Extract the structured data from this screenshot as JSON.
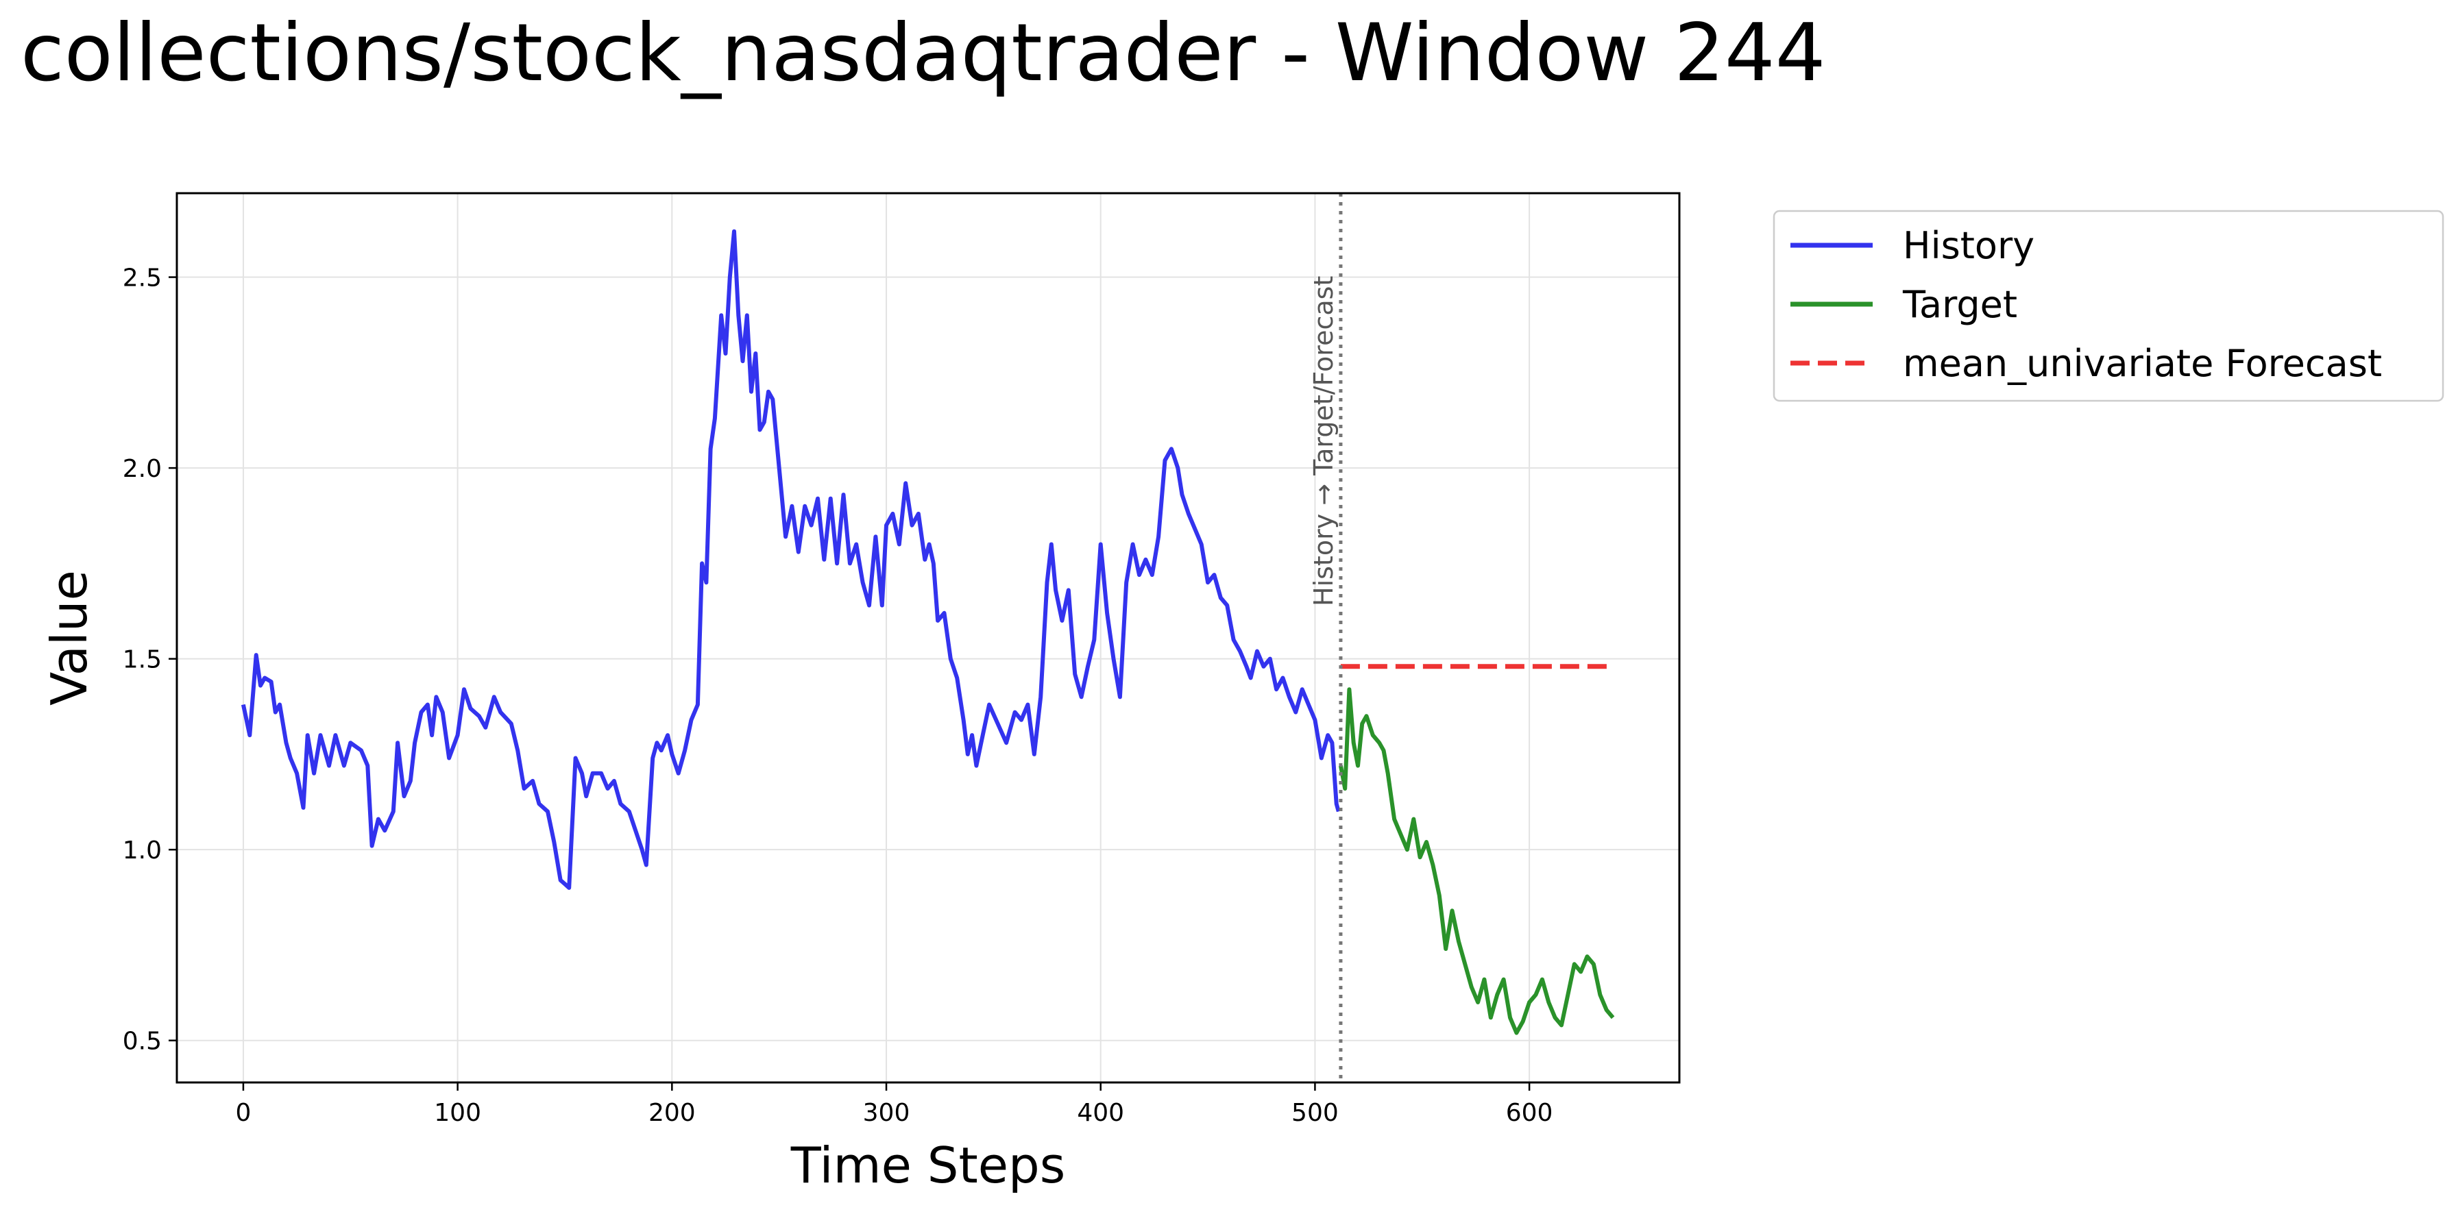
{
  "figure": {
    "title": "collections/stock_nasdaqtrader - Window 244"
  },
  "chart_data": {
    "type": "line",
    "xlabel": "Time Steps",
    "ylabel": "Value",
    "xlim": [
      -31,
      670
    ],
    "ylim": [
      0.39,
      2.72
    ],
    "xticks": [
      0,
      100,
      200,
      300,
      400,
      500,
      600
    ],
    "yticks": [
      0.5,
      1.0,
      1.5,
      2.0,
      2.5
    ],
    "ytick_labels": [
      "0.5",
      "1.0",
      "1.5",
      "2.0",
      "2.5"
    ],
    "grid": true,
    "legend_position": "outside-top-right",
    "split_annotation": {
      "x": 512,
      "label": "History → Target/Forecast"
    },
    "series": [
      {
        "name": "History",
        "color": "#3333ee",
        "style": "solid",
        "points": [
          [
            0,
            1.38
          ],
          [
            3,
            1.3
          ],
          [
            6,
            1.51
          ],
          [
            8,
            1.43
          ],
          [
            10,
            1.45
          ],
          [
            13,
            1.44
          ],
          [
            15,
            1.36
          ],
          [
            17,
            1.38
          ],
          [
            20,
            1.28
          ],
          [
            22,
            1.24
          ],
          [
            25,
            1.2
          ],
          [
            28,
            1.11
          ],
          [
            30,
            1.3
          ],
          [
            33,
            1.2
          ],
          [
            36,
            1.3
          ],
          [
            40,
            1.22
          ],
          [
            43,
            1.3
          ],
          [
            47,
            1.22
          ],
          [
            50,
            1.28
          ],
          [
            55,
            1.26
          ],
          [
            58,
            1.22
          ],
          [
            60,
            1.01
          ],
          [
            63,
            1.08
          ],
          [
            66,
            1.05
          ],
          [
            70,
            1.1
          ],
          [
            72,
            1.28
          ],
          [
            75,
            1.14
          ],
          [
            78,
            1.18
          ],
          [
            80,
            1.28
          ],
          [
            83,
            1.36
          ],
          [
            86,
            1.38
          ],
          [
            88,
            1.3
          ],
          [
            90,
            1.4
          ],
          [
            93,
            1.36
          ],
          [
            96,
            1.24
          ],
          [
            100,
            1.3
          ],
          [
            103,
            1.42
          ],
          [
            106,
            1.37
          ],
          [
            110,
            1.35
          ],
          [
            113,
            1.32
          ],
          [
            117,
            1.4
          ],
          [
            120,
            1.36
          ],
          [
            125,
            1.33
          ],
          [
            128,
            1.26
          ],
          [
            131,
            1.16
          ],
          [
            135,
            1.18
          ],
          [
            138,
            1.12
          ],
          [
            142,
            1.1
          ],
          [
            145,
            1.02
          ],
          [
            148,
            0.92
          ],
          [
            150,
            0.91
          ],
          [
            152,
            0.9
          ],
          [
            155,
            1.24
          ],
          [
            158,
            1.2
          ],
          [
            160,
            1.14
          ],
          [
            163,
            1.2
          ],
          [
            167,
            1.2
          ],
          [
            170,
            1.16
          ],
          [
            173,
            1.18
          ],
          [
            176,
            1.12
          ],
          [
            180,
            1.1
          ],
          [
            183,
            1.05
          ],
          [
            186,
            1.0
          ],
          [
            188,
            0.96
          ],
          [
            191,
            1.24
          ],
          [
            193,
            1.28
          ],
          [
            195,
            1.26
          ],
          [
            198,
            1.3
          ],
          [
            200,
            1.25
          ],
          [
            203,
            1.2
          ],
          [
            206,
            1.26
          ],
          [
            209,
            1.34
          ],
          [
            212,
            1.38
          ],
          [
            214,
            1.75
          ],
          [
            216,
            1.7
          ],
          [
            218,
            2.05
          ],
          [
            220,
            2.13
          ],
          [
            223,
            2.4
          ],
          [
            225,
            2.3
          ],
          [
            227,
            2.5
          ],
          [
            229,
            2.62
          ],
          [
            231,
            2.4
          ],
          [
            233,
            2.28
          ],
          [
            235,
            2.4
          ],
          [
            237,
            2.2
          ],
          [
            239,
            2.3
          ],
          [
            241,
            2.1
          ],
          [
            243,
            2.12
          ],
          [
            245,
            2.2
          ],
          [
            247,
            2.18
          ],
          [
            250,
            2.0
          ],
          [
            253,
            1.82
          ],
          [
            256,
            1.9
          ],
          [
            259,
            1.78
          ],
          [
            262,
            1.9
          ],
          [
            265,
            1.85
          ],
          [
            268,
            1.92
          ],
          [
            271,
            1.76
          ],
          [
            274,
            1.92
          ],
          [
            277,
            1.75
          ],
          [
            280,
            1.93
          ],
          [
            283,
            1.75
          ],
          [
            286,
            1.8
          ],
          [
            289,
            1.7
          ],
          [
            292,
            1.64
          ],
          [
            295,
            1.82
          ],
          [
            298,
            1.64
          ],
          [
            300,
            1.85
          ],
          [
            303,
            1.88
          ],
          [
            306,
            1.8
          ],
          [
            309,
            1.96
          ],
          [
            312,
            1.85
          ],
          [
            315,
            1.88
          ],
          [
            318,
            1.76
          ],
          [
            320,
            1.8
          ],
          [
            322,
            1.75
          ],
          [
            324,
            1.6
          ],
          [
            327,
            1.62
          ],
          [
            330,
            1.5
          ],
          [
            333,
            1.45
          ],
          [
            336,
            1.34
          ],
          [
            338,
            1.25
          ],
          [
            340,
            1.3
          ],
          [
            342,
            1.22
          ],
          [
            345,
            1.3
          ],
          [
            348,
            1.38
          ],
          [
            352,
            1.33
          ],
          [
            356,
            1.28
          ],
          [
            360,
            1.36
          ],
          [
            363,
            1.34
          ],
          [
            366,
            1.38
          ],
          [
            369,
            1.25
          ],
          [
            372,
            1.4
          ],
          [
            375,
            1.7
          ],
          [
            377,
            1.8
          ],
          [
            379,
            1.68
          ],
          [
            382,
            1.6
          ],
          [
            385,
            1.68
          ],
          [
            388,
            1.46
          ],
          [
            391,
            1.4
          ],
          [
            394,
            1.48
          ],
          [
            397,
            1.55
          ],
          [
            400,
            1.8
          ],
          [
            403,
            1.62
          ],
          [
            406,
            1.5
          ],
          [
            409,
            1.4
          ],
          [
            412,
            1.7
          ],
          [
            415,
            1.8
          ],
          [
            418,
            1.72
          ],
          [
            421,
            1.76
          ],
          [
            424,
            1.72
          ],
          [
            427,
            1.82
          ],
          [
            430,
            2.02
          ],
          [
            433,
            2.05
          ],
          [
            436,
            2.0
          ],
          [
            438,
            1.93
          ],
          [
            441,
            1.88
          ],
          [
            444,
            1.84
          ],
          [
            447,
            1.8
          ],
          [
            450,
            1.7
          ],
          [
            453,
            1.72
          ],
          [
            456,
            1.66
          ],
          [
            459,
            1.64
          ],
          [
            462,
            1.55
          ],
          [
            465,
            1.52
          ],
          [
            468,
            1.48
          ],
          [
            470,
            1.45
          ],
          [
            473,
            1.52
          ],
          [
            476,
            1.48
          ],
          [
            479,
            1.5
          ],
          [
            482,
            1.42
          ],
          [
            485,
            1.45
          ],
          [
            488,
            1.4
          ],
          [
            491,
            1.36
          ],
          [
            494,
            1.42
          ],
          [
            497,
            1.38
          ],
          [
            500,
            1.34
          ],
          [
            503,
            1.24
          ],
          [
            506,
            1.3
          ],
          [
            508,
            1.28
          ],
          [
            510,
            1.12
          ],
          [
            511,
            1.1
          ]
        ]
      },
      {
        "name": "Target",
        "color": "#2a922a",
        "style": "solid",
        "points": [
          [
            512,
            1.22
          ],
          [
            514,
            1.16
          ],
          [
            516,
            1.42
          ],
          [
            518,
            1.28
          ],
          [
            520,
            1.22
          ],
          [
            522,
            1.33
          ],
          [
            524,
            1.35
          ],
          [
            527,
            1.3
          ],
          [
            530,
            1.28
          ],
          [
            532,
            1.26
          ],
          [
            534,
            1.2
          ],
          [
            537,
            1.08
          ],
          [
            540,
            1.04
          ],
          [
            543,
            1.0
          ],
          [
            546,
            1.08
          ],
          [
            549,
            0.98
          ],
          [
            552,
            1.02
          ],
          [
            555,
            0.96
          ],
          [
            558,
            0.88
          ],
          [
            561,
            0.74
          ],
          [
            564,
            0.84
          ],
          [
            567,
            0.76
          ],
          [
            570,
            0.7
          ],
          [
            573,
            0.64
          ],
          [
            576,
            0.6
          ],
          [
            579,
            0.66
          ],
          [
            582,
            0.56
          ],
          [
            585,
            0.62
          ],
          [
            588,
            0.66
          ],
          [
            591,
            0.56
          ],
          [
            594,
            0.52
          ],
          [
            597,
            0.55
          ],
          [
            600,
            0.6
          ],
          [
            603,
            0.62
          ],
          [
            606,
            0.66
          ],
          [
            609,
            0.6
          ],
          [
            612,
            0.56
          ],
          [
            615,
            0.54
          ],
          [
            618,
            0.62
          ],
          [
            621,
            0.7
          ],
          [
            624,
            0.68
          ],
          [
            627,
            0.72
          ],
          [
            630,
            0.7
          ],
          [
            633,
            0.62
          ],
          [
            636,
            0.58
          ],
          [
            639,
            0.56
          ]
        ]
      },
      {
        "name": "mean_univariate Forecast",
        "color": "#ee3333",
        "style": "dashed",
        "points": [
          [
            512,
            1.48
          ],
          [
            639,
            1.48
          ]
        ]
      }
    ]
  }
}
